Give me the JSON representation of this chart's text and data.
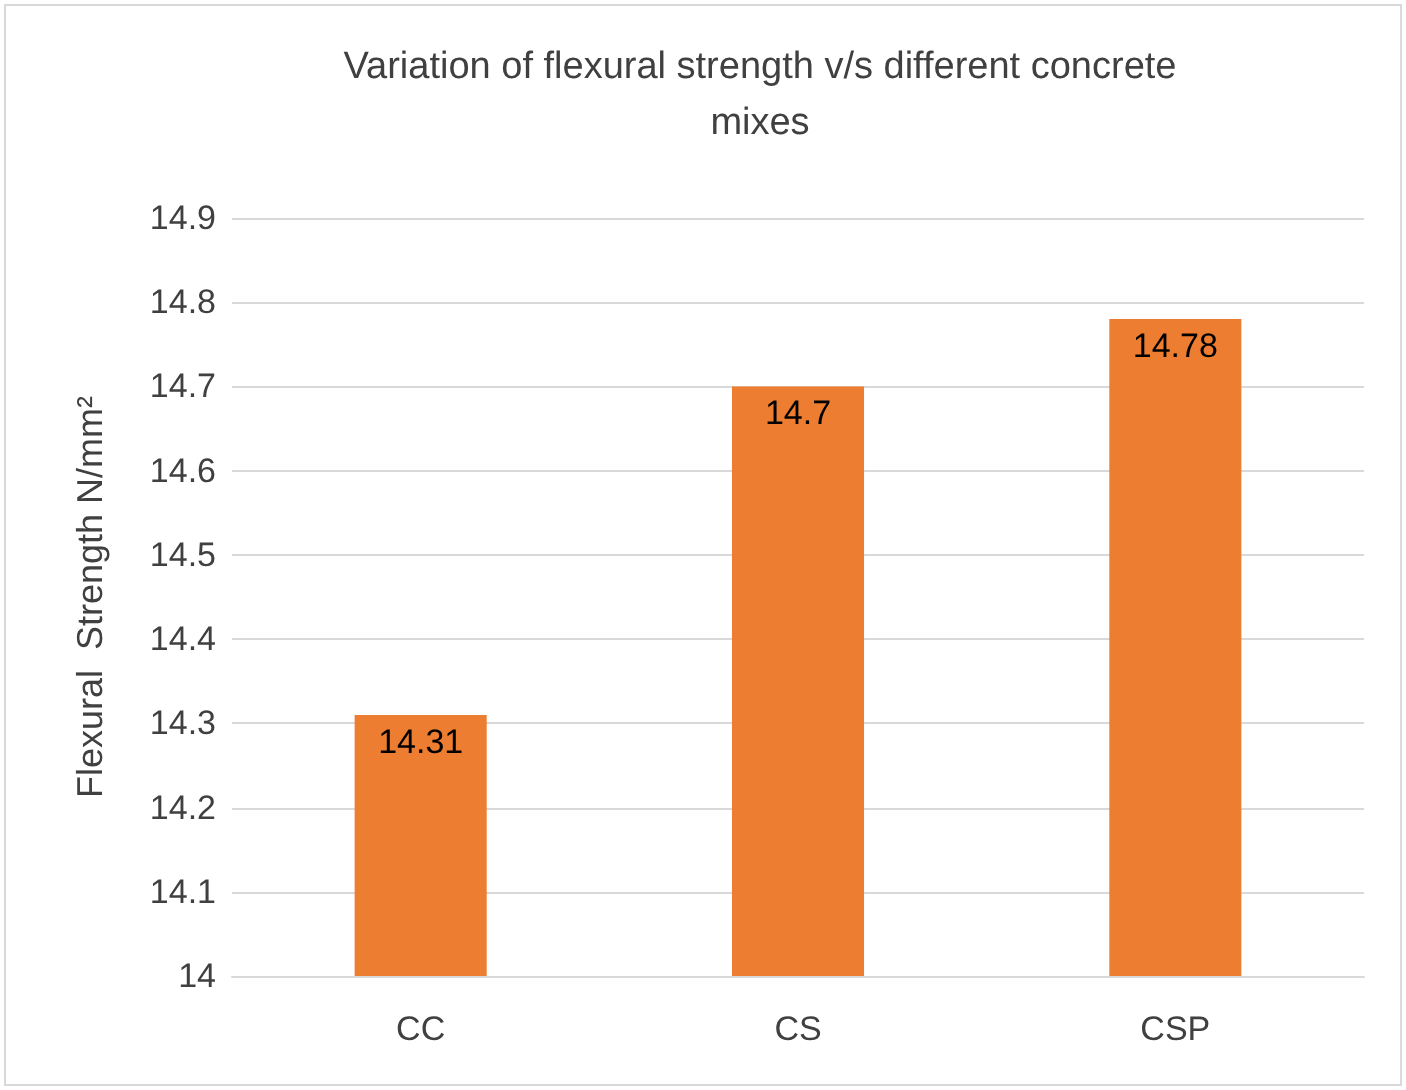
{
  "chart_data": {
    "type": "bar",
    "title": "Variation of flexural strength v/s different concrete mixes",
    "ylabel": "Flexural  Strength N/mm²",
    "categories": [
      "CC",
      "CS",
      "CSP"
    ],
    "values": [
      14.31,
      14.7,
      14.78
    ],
    "color": "#ed7d31",
    "ylim": [
      14,
      14.9
    ],
    "yticks": [
      14,
      14.1,
      14.2,
      14.3,
      14.4,
      14.5,
      14.6,
      14.7,
      14.8,
      14.9
    ],
    "grid": "y",
    "data_labels": true
  }
}
